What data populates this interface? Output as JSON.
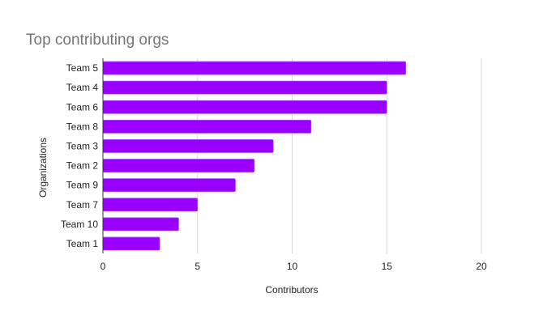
{
  "chart_data": {
    "type": "bar",
    "orientation": "horizontal",
    "title": "Top contributing orgs",
    "xlabel": "Contributors",
    "ylabel": "Organizations",
    "categories": [
      "Team 5",
      "Team 4",
      "Team 6",
      "Team 8",
      "Team 3",
      "Team 2",
      "Team 9",
      "Team 7",
      "Team 10",
      "Team 1"
    ],
    "values": [
      16,
      15,
      15,
      11,
      9,
      8,
      7,
      5,
      4,
      3
    ],
    "xlim": [
      0,
      20
    ],
    "xticks": [
      "0",
      "5",
      "10",
      "15",
      "20"
    ],
    "grid": true,
    "legend": "none",
    "bar_color": "#9900ff"
  }
}
